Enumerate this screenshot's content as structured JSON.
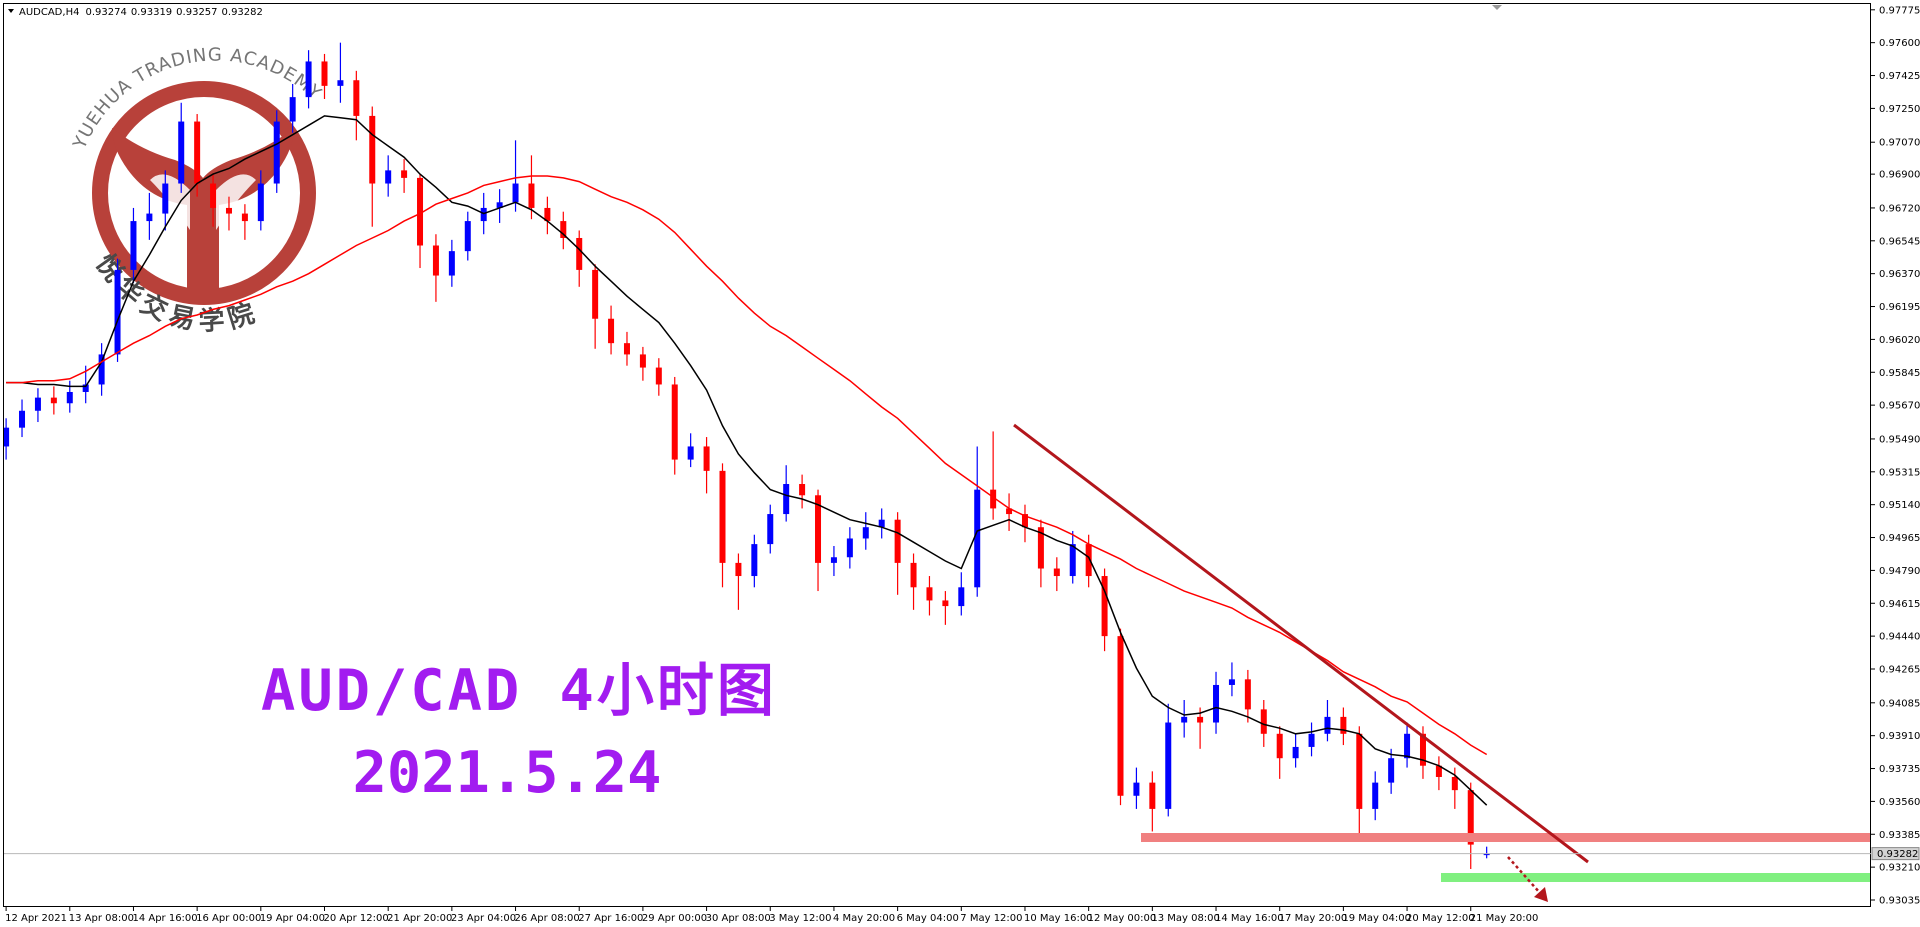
{
  "chart_data": {
    "type": "candlestick",
    "title": "AUDCAD,H4",
    "categories": [
      "12 Apr 2021",
      null,
      null,
      null,
      "13 Apr 08:00",
      null,
      null,
      null,
      "14 Apr 16:00",
      null,
      null,
      null,
      "16 Apr 00:00",
      null,
      null,
      null,
      "19 Apr 04:00",
      null,
      null,
      null,
      "20 Apr 12:00",
      null,
      null,
      null,
      "21 Apr 20:00",
      null,
      null,
      null,
      "23 Apr 04:00",
      null,
      null,
      null,
      "26 Apr 08:00",
      null,
      null,
      null,
      "27 Apr 16:00",
      null,
      null,
      null,
      "29 Apr 00:00",
      null,
      null,
      null,
      "30 Apr 08:00",
      null,
      null,
      null,
      "3 May 12:00",
      null,
      null,
      null,
      "4 May 20:00",
      null,
      null,
      null,
      "6 May 04:00",
      null,
      null,
      null,
      "7 May 12:00",
      null,
      null,
      null,
      "10 May 16:00",
      null,
      null,
      null,
      "12 May 00:00",
      null,
      null,
      null,
      "13 May 08:00",
      null,
      null,
      null,
      "14 May 16:00",
      null,
      null,
      null,
      "17 May 20:00",
      null,
      null,
      null,
      "19 May 04:00",
      null,
      null,
      null,
      "20 May 12:00",
      null,
      null,
      null,
      "21 May 20:00",
      null
    ],
    "ohlc": [
      [
        0.9545,
        0.956,
        0.9538,
        0.9555
      ],
      [
        0.9555,
        0.957,
        0.955,
        0.9564
      ],
      [
        0.9564,
        0.9576,
        0.9558,
        0.9571
      ],
      [
        0.9571,
        0.9577,
        0.9562,
        0.9568
      ],
      [
        0.9568,
        0.958,
        0.9563,
        0.9574
      ],
      [
        0.9574,
        0.9588,
        0.9568,
        0.9578
      ],
      [
        0.9578,
        0.96,
        0.9572,
        0.9594
      ],
      [
        0.9594,
        0.9645,
        0.959,
        0.9639
      ],
      [
        0.9639,
        0.9672,
        0.9632,
        0.9665
      ],
      [
        0.9665,
        0.968,
        0.9655,
        0.9669
      ],
      [
        0.9669,
        0.9692,
        0.966,
        0.9685
      ],
      [
        0.9685,
        0.9728,
        0.968,
        0.9718
      ],
      [
        0.9718,
        0.9722,
        0.9678,
        0.9685
      ],
      [
        0.9685,
        0.969,
        0.9662,
        0.9672
      ],
      [
        0.9672,
        0.9678,
        0.966,
        0.9669
      ],
      [
        0.9669,
        0.9674,
        0.9655,
        0.9665
      ],
      [
        0.9665,
        0.9692,
        0.966,
        0.9685
      ],
      [
        0.9685,
        0.9724,
        0.968,
        0.9718
      ],
      [
        0.9718,
        0.9738,
        0.9712,
        0.9731
      ],
      [
        0.9731,
        0.9756,
        0.9725,
        0.975
      ],
      [
        0.975,
        0.9754,
        0.973,
        0.9737
      ],
      [
        0.9737,
        0.976,
        0.9728,
        0.974
      ],
      [
        0.974,
        0.9745,
        0.9708,
        0.9721
      ],
      [
        0.9721,
        0.9726,
        0.9662,
        0.9685
      ],
      [
        0.9685,
        0.97,
        0.9678,
        0.9692
      ],
      [
        0.9692,
        0.9698,
        0.968,
        0.9688
      ],
      [
        0.9688,
        0.969,
        0.964,
        0.9652
      ],
      [
        0.9652,
        0.9658,
        0.9622,
        0.9636
      ],
      [
        0.9636,
        0.9655,
        0.963,
        0.9649
      ],
      [
        0.9649,
        0.967,
        0.9644,
        0.9665
      ],
      [
        0.9665,
        0.968,
        0.9658,
        0.9672
      ],
      [
        0.9672,
        0.9682,
        0.9664,
        0.9675
      ],
      [
        0.9675,
        0.9708,
        0.967,
        0.9685
      ],
      [
        0.9685,
        0.97,
        0.9666,
        0.9672
      ],
      [
        0.9672,
        0.9678,
        0.9658,
        0.9665
      ],
      [
        0.9665,
        0.967,
        0.965,
        0.9656
      ],
      [
        0.9656,
        0.966,
        0.963,
        0.9639
      ],
      [
        0.9639,
        0.9642,
        0.9597,
        0.9613
      ],
      [
        0.9613,
        0.962,
        0.9594,
        0.96
      ],
      [
        0.96,
        0.9606,
        0.9588,
        0.9594
      ],
      [
        0.9594,
        0.9598,
        0.958,
        0.9587
      ],
      [
        0.9587,
        0.9592,
        0.9572,
        0.9578
      ],
      [
        0.9578,
        0.9582,
        0.953,
        0.9538
      ],
      [
        0.9538,
        0.9552,
        0.9534,
        0.9545
      ],
      [
        0.9545,
        0.955,
        0.952,
        0.9532
      ],
      [
        0.9532,
        0.9536,
        0.947,
        0.9483
      ],
      [
        0.9483,
        0.9488,
        0.9458,
        0.9476
      ],
      [
        0.9476,
        0.9498,
        0.947,
        0.9493
      ],
      [
        0.9493,
        0.9514,
        0.9488,
        0.9509
      ],
      [
        0.9509,
        0.9535,
        0.9505,
        0.9525
      ],
      [
        0.9525,
        0.953,
        0.9512,
        0.9519
      ],
      [
        0.9519,
        0.9522,
        0.9468,
        0.9483
      ],
      [
        0.9483,
        0.9492,
        0.9476,
        0.9486
      ],
      [
        0.9486,
        0.9502,
        0.948,
        0.9496
      ],
      [
        0.9496,
        0.951,
        0.949,
        0.9502
      ],
      [
        0.9502,
        0.9512,
        0.9496,
        0.9506
      ],
      [
        0.9506,
        0.951,
        0.9466,
        0.9483
      ],
      [
        0.9483,
        0.9488,
        0.9458,
        0.947
      ],
      [
        0.947,
        0.9476,
        0.9455,
        0.9463
      ],
      [
        0.9463,
        0.9468,
        0.945,
        0.946
      ],
      [
        0.946,
        0.9478,
        0.9455,
        0.947
      ],
      [
        0.947,
        0.9545,
        0.9465,
        0.9522
      ],
      [
        0.9522,
        0.9553,
        0.9506,
        0.9512
      ],
      [
        0.9512,
        0.952,
        0.95,
        0.9509
      ],
      [
        0.9509,
        0.9514,
        0.9494,
        0.9502
      ],
      [
        0.9502,
        0.9506,
        0.947,
        0.948
      ],
      [
        0.948,
        0.9486,
        0.9468,
        0.9476
      ],
      [
        0.9476,
        0.95,
        0.9472,
        0.9493
      ],
      [
        0.9493,
        0.9498,
        0.947,
        0.9476
      ],
      [
        0.9476,
        0.948,
        0.9436,
        0.9444
      ],
      [
        0.9444,
        0.9448,
        0.9354,
        0.9359
      ],
      [
        0.9359,
        0.9374,
        0.9352,
        0.9366
      ],
      [
        0.9366,
        0.9372,
        0.934,
        0.9352
      ],
      [
        0.9352,
        0.9408,
        0.9348,
        0.9398
      ],
      [
        0.9398,
        0.941,
        0.939,
        0.9401
      ],
      [
        0.9401,
        0.9406,
        0.9384,
        0.9398
      ],
      [
        0.9398,
        0.9425,
        0.9392,
        0.9418
      ],
      [
        0.9418,
        0.943,
        0.9412,
        0.9421
      ],
      [
        0.9421,
        0.9426,
        0.9398,
        0.9405
      ],
      [
        0.9405,
        0.941,
        0.9385,
        0.9392
      ],
      [
        0.9392,
        0.9396,
        0.9368,
        0.9379
      ],
      [
        0.9379,
        0.9392,
        0.9374,
        0.9385
      ],
      [
        0.9385,
        0.9398,
        0.938,
        0.9392
      ],
      [
        0.9392,
        0.941,
        0.9388,
        0.9401
      ],
      [
        0.9401,
        0.9406,
        0.9386,
        0.9392
      ],
      [
        0.9392,
        0.9396,
        0.9338,
        0.9352
      ],
      [
        0.9352,
        0.9372,
        0.9346,
        0.9366
      ],
      [
        0.9366,
        0.9384,
        0.936,
        0.9379
      ],
      [
        0.9379,
        0.9398,
        0.9374,
        0.9392
      ],
      [
        0.9392,
        0.9396,
        0.9368,
        0.9375
      ],
      [
        0.9375,
        0.938,
        0.9362,
        0.9369
      ],
      [
        0.9369,
        0.9374,
        0.9352,
        0.9362
      ],
      [
        0.9362,
        0.9366,
        0.932,
        0.9333
      ],
      [
        0.93274,
        0.93319,
        0.93257,
        0.93282
      ]
    ],
    "up_color": "#0000ff",
    "down_color": "#ff0000",
    "series": [
      {
        "color": "#000000",
        "values": [
          0.9579,
          0.9579,
          0.9578,
          0.9578,
          0.9577,
          0.9577,
          0.959,
          0.9612,
          0.9633,
          0.9647,
          0.9662,
          0.9676,
          0.9685,
          0.969,
          0.9693,
          0.9698,
          0.9702,
          0.9706,
          0.9711,
          0.9716,
          0.9721,
          0.972,
          0.9719,
          0.9711,
          0.9705,
          0.9699,
          0.969,
          0.9683,
          0.9675,
          0.9673,
          0.9669,
          0.9672,
          0.9675,
          0.9671,
          0.9665,
          0.9658,
          0.965,
          0.9641,
          0.9633,
          0.9625,
          0.9618,
          0.9611,
          0.96,
          0.9588,
          0.9575,
          0.9556,
          0.9541,
          0.9531,
          0.9522,
          0.9519,
          0.9517,
          0.9514,
          0.951,
          0.9506,
          0.9504,
          0.9502,
          0.9499,
          0.9494,
          0.9489,
          0.9484,
          0.948,
          0.95,
          0.9503,
          0.9506,
          0.9502,
          0.9499,
          0.9495,
          0.9492,
          0.9486,
          0.9468,
          0.9446,
          0.9427,
          0.9412,
          0.9406,
          0.9402,
          0.9403,
          0.9406,
          0.9404,
          0.9401,
          0.9397,
          0.9395,
          0.9392,
          0.9393,
          0.9395,
          0.9394,
          0.9392,
          0.9384,
          0.9381,
          0.938,
          0.9378,
          0.9375,
          0.937,
          0.9362,
          0.9354
        ]
      },
      {
        "color": "#ff0000",
        "values": [
          0.9579,
          0.9579,
          0.958,
          0.958,
          0.9581,
          0.9585,
          0.959,
          0.9595,
          0.96,
          0.9604,
          0.9609,
          0.9613,
          0.9615,
          0.9618,
          0.962,
          0.9623,
          0.9626,
          0.963,
          0.9633,
          0.9637,
          0.9642,
          0.9647,
          0.9652,
          0.9656,
          0.966,
          0.9665,
          0.9669,
          0.9674,
          0.9677,
          0.968,
          0.9684,
          0.9686,
          0.9688,
          0.9689,
          0.9689,
          0.9688,
          0.9686,
          0.9682,
          0.9678,
          0.9675,
          0.9671,
          0.9666,
          0.9659,
          0.965,
          0.9641,
          0.9633,
          0.9624,
          0.9616,
          0.9609,
          0.9604,
          0.9598,
          0.9592,
          0.9586,
          0.958,
          0.9573,
          0.9566,
          0.956,
          0.9552,
          0.9544,
          0.9536,
          0.953,
          0.9524,
          0.9518,
          0.9512,
          0.9508,
          0.9505,
          0.9502,
          0.9498,
          0.9493,
          0.9489,
          0.9485,
          0.948,
          0.9476,
          0.9472,
          0.9468,
          0.9465,
          0.9462,
          0.9459,
          0.9454,
          0.945,
          0.9446,
          0.9441,
          0.9436,
          0.9431,
          0.9425,
          0.9421,
          0.9417,
          0.9412,
          0.9409,
          0.9403,
          0.9397,
          0.9392,
          0.9386,
          0.9381
        ]
      }
    ],
    "ylim": [
      0.93035,
      0.97775
    ],
    "yticks": [
      0.97775,
      {
        "value": 0.976,
        "label": "0.97600"
      },
      0.97425,
      {
        "value": 0.9725,
        "label": "0.97250"
      },
      {
        "value": 0.9707,
        "label": "0.97070"
      },
      {
        "value": 0.969,
        "label": "0.96900"
      },
      {
        "value": 0.9672,
        "label": "0.96720"
      },
      0.96545,
      {
        "value": 0.9637,
        "label": "0.96370"
      },
      0.96195,
      {
        "value": 0.9602,
        "label": "0.96020"
      },
      0.95845,
      {
        "value": 0.9567,
        "label": "0.95670"
      },
      {
        "value": 0.9549,
        "label": "0.95490"
      },
      0.95315,
      {
        "value": 0.9514,
        "label": "0.95140"
      },
      0.94965,
      {
        "value": 0.9479,
        "label": "0.94790"
      },
      0.94615,
      {
        "value": 0.9444,
        "label": "0.94440"
      },
      0.94265,
      0.94085,
      {
        "value": 0.9391,
        "label": "0.93910"
      },
      0.93735,
      {
        "value": 0.9356,
        "label": "0.93560"
      },
      0.93385,
      {
        "value": 0.9321,
        "label": "0.93210"
      },
      0.93035
    ],
    "grid": false,
    "annotations": [
      "AUD/CAD 4小时图",
      "2021.5.24",
      "YUEHUA TRADING ACADEMY",
      "悦华交易学院"
    ]
  }
}
